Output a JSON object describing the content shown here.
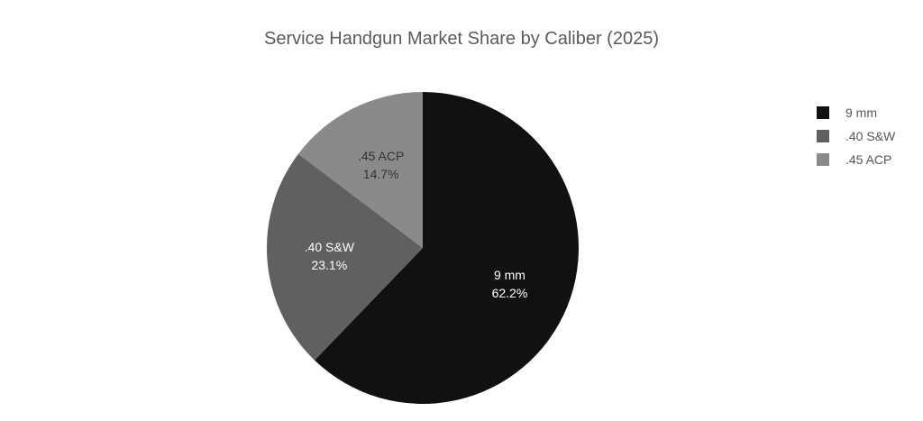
{
  "chart_data": {
    "type": "pie",
    "title": "Service Handgun Market Share by Caliber (2025)",
    "categories": [
      "9 mm",
      ".40 S&W",
      ".45 ACP"
    ],
    "values": [
      62.2,
      23.1,
      14.7
    ],
    "value_labels": [
      "62.2%",
      "23.1%",
      "14.7%"
    ],
    "colors": [
      "#111111",
      "#606060",
      "#8a8a8a"
    ],
    "label_colors": [
      "#ffffff",
      "#ffffff",
      "#333333"
    ],
    "start_angle_deg": 0,
    "direction": "clockwise",
    "legend_position": "top-right"
  }
}
